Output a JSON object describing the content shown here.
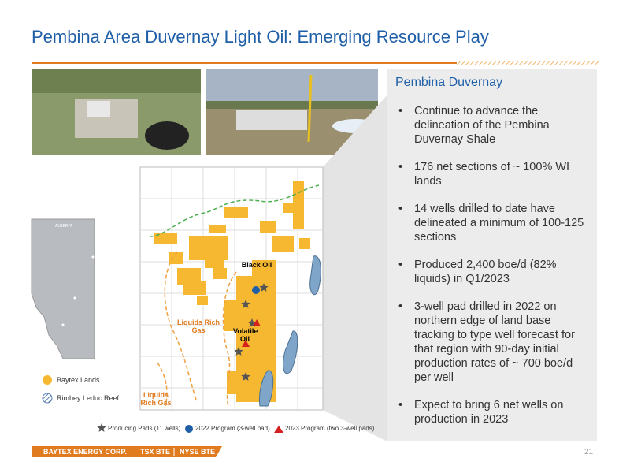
{
  "header": {
    "title": "Pembina Area Duvernay Light Oil: Emerging Resource Play"
  },
  "panel": {
    "heading": "Pembina Duvernay",
    "bullets": [
      "Continue to advance the delineation of the Pembina Duvernay Shale",
      "176 net sections of ~ 100% WI lands",
      "14 wells drilled to date have delineated a minimum of 100-125 sections",
      "Produced 2,400 boe/d (82% liquids) in Q1/2023",
      "3-well pad drilled in 2022 on northern edge of land base tracking to type well forecast for that region with 90-day initial production rates of ~ 700 boe/d per well",
      "Expect to bring 6 net wells on production in 2023"
    ]
  },
  "map": {
    "labels": {
      "black_oil": "Black Oil",
      "liquids_rich_gas": "Liquids Rich Gas",
      "volatile_oil": "Volatile Oil",
      "liquids_rich_gas_south": "Liquids Rich Gas"
    },
    "inset_label": "ALBERTA",
    "legend": {
      "lands": "Baytex Lands",
      "reef": "Rimbey Leduc Reef"
    },
    "key": {
      "producing": "Producing Pads (11 wells)",
      "program_2022": "2022 Program (3-well pad)",
      "program_2023": "2023 Program (two 3-well pads)"
    }
  },
  "footer": {
    "company": "BAYTEX ENERGY CORP.",
    "tsx": "TSX BTE",
    "nyse": "NYSE BTE",
    "page": "21"
  }
}
